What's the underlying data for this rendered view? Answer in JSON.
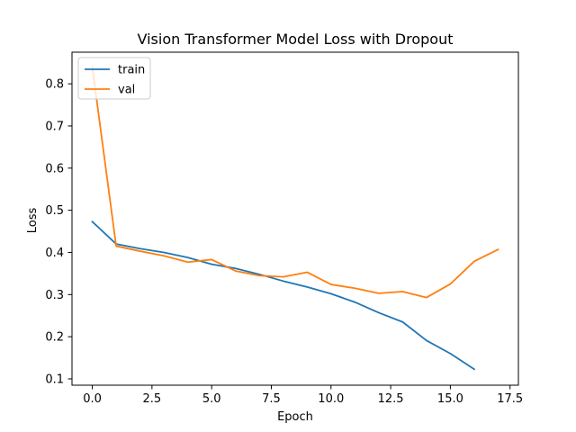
{
  "chart_data": {
    "type": "line",
    "title": "Vision Transformer Model Loss with Dropout",
    "xlabel": "Epoch",
    "ylabel": "Loss",
    "xlim": [
      -0.85,
      17.85
    ],
    "ylim": [
      0.085,
      0.875
    ],
    "x_ticks": [
      0.0,
      2.5,
      5.0,
      7.5,
      10.0,
      12.5,
      15.0,
      17.5
    ],
    "x_tick_labels": [
      "0.0",
      "2.5",
      "5.0",
      "7.5",
      "10.0",
      "12.5",
      "15.0",
      "17.5"
    ],
    "y_ticks": [
      0.1,
      0.2,
      0.3,
      0.4,
      0.5,
      0.6,
      0.7,
      0.8
    ],
    "y_tick_labels": [
      "0.1",
      "0.2",
      "0.3",
      "0.4",
      "0.5",
      "0.6",
      "0.7",
      "0.8"
    ],
    "grid": false,
    "legend_position": "top-left",
    "series": [
      {
        "name": "train",
        "color": "#1f77b4",
        "x": [
          0,
          1,
          2,
          3,
          4,
          5,
          6,
          7,
          8,
          9,
          10,
          11,
          12,
          13,
          14,
          15,
          16
        ],
        "values": [
          0.473,
          0.42,
          0.409,
          0.4,
          0.388,
          0.372,
          0.362,
          0.348,
          0.332,
          0.318,
          0.302,
          0.282,
          0.257,
          0.235,
          0.191,
          0.16,
          0.123
        ]
      },
      {
        "name": "val",
        "color": "#ff7f0e",
        "x": [
          0,
          1,
          2,
          3,
          4,
          5,
          6,
          7,
          8,
          9,
          10,
          11,
          12,
          13,
          14,
          15,
          16,
          17
        ],
        "values": [
          0.84,
          0.415,
          0.403,
          0.392,
          0.377,
          0.383,
          0.356,
          0.345,
          0.342,
          0.353,
          0.324,
          0.315,
          0.303,
          0.307,
          0.293,
          0.325,
          0.379,
          0.407
        ]
      }
    ]
  }
}
